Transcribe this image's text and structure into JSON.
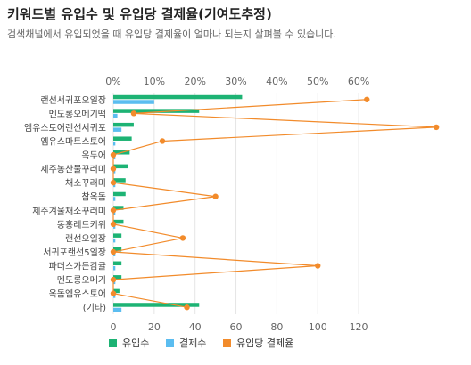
{
  "header": {
    "title": "키워드별 유입수 및 유입당 결제율(기여도추정)",
    "subtitle": "검색채널에서 유입되었을 때 유입당 결제율이 얼마나 되는지 살펴볼 수 있습니다."
  },
  "chart_data": {
    "type": "bar",
    "orientation": "horizontal",
    "categories": [
      "랜선서귀포오일장",
      "멘도롱오메기떡",
      "엠유스토어랜선서귀포",
      "엠유스마트스토어",
      "옥두어",
      "제주농산물꾸러미",
      "채소꾸러미",
      "참옥돔",
      "제주겨울채소꾸러미",
      "동홍레드키위",
      "랜선오일장",
      "서귀포랜선5일장",
      "파더스가든감귤",
      "멘도롱오메기",
      "옥돔엠유스토어",
      "(기타)"
    ],
    "series": [
      {
        "name": "유입수",
        "axis": "bottom",
        "color": "#1db374",
        "values": [
          63,
          42,
          10,
          9,
          8,
          7,
          6,
          6,
          5,
          5,
          4,
          4,
          4,
          4,
          3,
          42
        ]
      },
      {
        "name": "결제수",
        "axis": "bottom",
        "color": "#5bbdf0",
        "values": [
          20,
          2,
          4,
          1,
          1,
          1,
          1,
          1,
          1,
          1,
          1,
          1,
          1,
          1,
          1,
          4
        ]
      },
      {
        "name": "유입당 결제율",
        "axis": "top",
        "color": "#f28b2b",
        "type": "line",
        "values": [
          62,
          5,
          79,
          12,
          0,
          0,
          0,
          25,
          0,
          0,
          17,
          0,
          50,
          0,
          0,
          18
        ]
      }
    ],
    "x_axis_bottom": {
      "ticks": [
        0,
        20,
        40,
        60,
        80,
        100,
        120
      ],
      "range": [
        0,
        130
      ]
    },
    "x_axis_top": {
      "ticks": [
        "0%",
        "10%",
        "20%",
        "30%",
        "40%",
        "50%",
        "60%"
      ],
      "range": [
        0,
        65
      ]
    },
    "legend": [
      "유입수",
      "결제수",
      "유입당 결제율"
    ],
    "legend_position": "bottom",
    "grid": true
  }
}
